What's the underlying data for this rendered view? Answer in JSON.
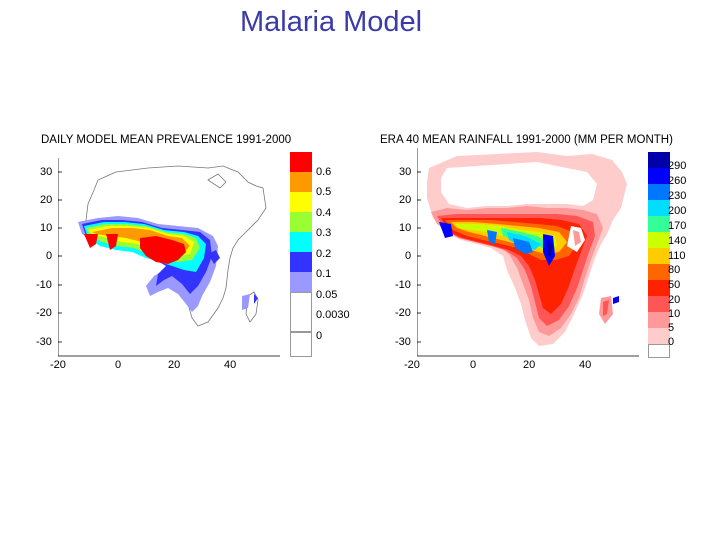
{
  "slide": {
    "title": "Malaria Model"
  },
  "left_map": {
    "title": "DAILY MODEL MEAN PREVALENCE 1991-2000",
    "y_ticks": [
      "30",
      "20",
      "10",
      "0",
      "-10",
      "-20",
      "-30"
    ],
    "x_ticks": [
      "-20",
      "0",
      "20",
      "40"
    ],
    "legend": {
      "labels": [
        "0.6",
        "0.5",
        "0.4",
        "0.3",
        "0.2",
        "0.1",
        "0.05",
        "0.0030",
        "0"
      ],
      "colors": [
        "#ff0000",
        "#ff9900",
        "#ffff00",
        "#99ff33",
        "#00ffff",
        "#3333ff",
        "#9999ff",
        "#ffffff",
        "#ffffff"
      ]
    }
  },
  "right_map": {
    "title": "ERA 40 MEAN RAINFALL 1991-2000 (MM PER MONTH)",
    "y_ticks": [
      "30",
      "20",
      "10",
      "0",
      "-10",
      "-20",
      "-30"
    ],
    "x_ticks": [
      "-20",
      "0",
      "20",
      "40"
    ],
    "legend": {
      "labels": [
        "290",
        "260",
        "230",
        "200",
        "170",
        "140",
        "110",
        "80",
        "50",
        "20",
        "10",
        "5",
        "0"
      ],
      "colors": [
        "#0000aa",
        "#0000ff",
        "#0077ff",
        "#00ddff",
        "#33ff99",
        "#ccff00",
        "#ffcc00",
        "#ff6600",
        "#ff2200",
        "#ff5555",
        "#ff9999",
        "#ffcccc",
        "#ffffff"
      ]
    }
  }
}
